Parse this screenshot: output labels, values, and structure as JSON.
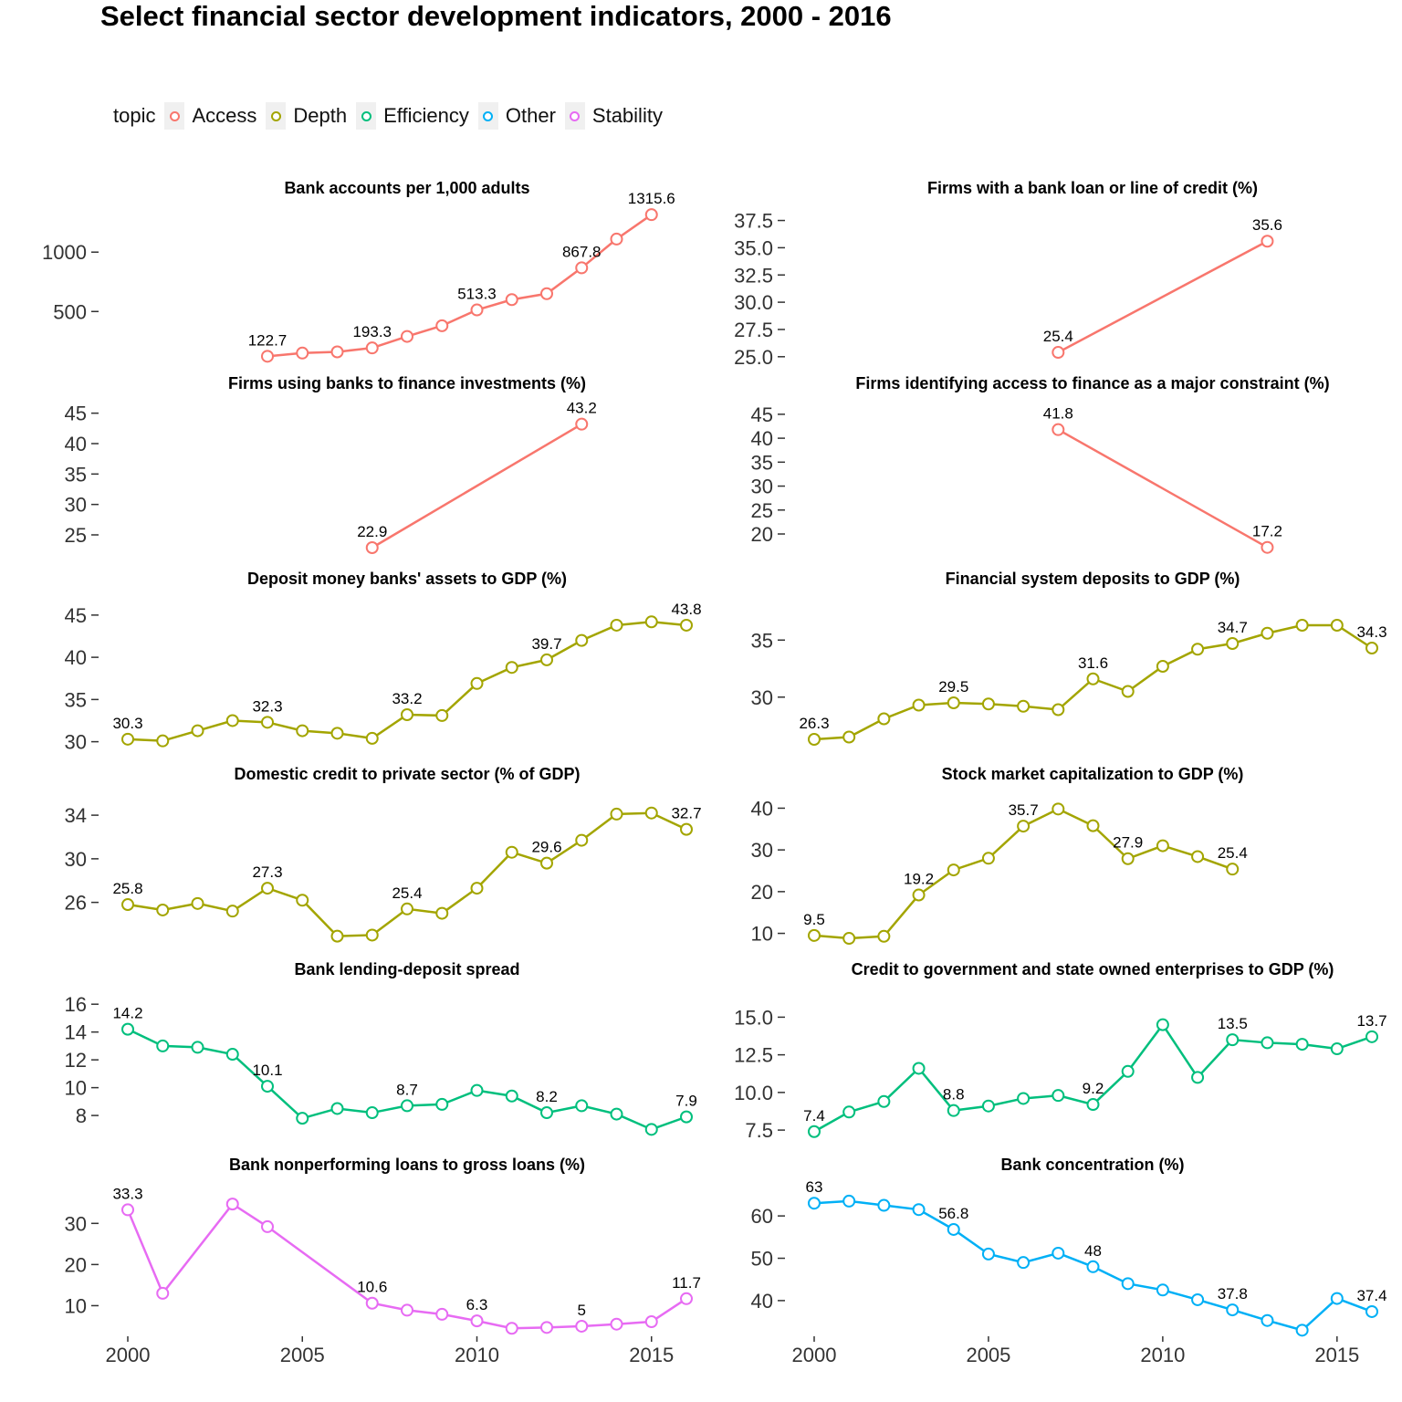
{
  "title": "Select financial sector development indicators, 2000 - 2016",
  "legend": {
    "title": "topic",
    "items": [
      {
        "label": "Access",
        "color": "#F8766D"
      },
      {
        "label": "Depth",
        "color": "#A3A500"
      },
      {
        "label": "Efficiency",
        "color": "#00BF7D"
      },
      {
        "label": "Other",
        "color": "#00B0F6"
      },
      {
        "label": "Stability",
        "color": "#E76BF3"
      }
    ]
  },
  "chart_data": [
    {
      "type": "line",
      "title": "Bank accounts per 1,000 adults",
      "topic": "Access",
      "x": [
        2004,
        2005,
        2006,
        2007,
        2008,
        2009,
        2010,
        2011,
        2012,
        2013,
        2014,
        2015
      ],
      "values": [
        122.7,
        150,
        160,
        193.3,
        290,
        380,
        513.3,
        600,
        650,
        867.8,
        1110,
        1315.6
      ],
      "labels": {
        "2004": "122.7",
        "2007": "193.3",
        "2010": "513.3",
        "2013": "867.8",
        "2015": "1315.6"
      },
      "yticks": [
        500,
        1000
      ],
      "ylim": [
        110,
        1340
      ]
    },
    {
      "type": "line",
      "title": "Firms with a bank loan or line of credit (%)",
      "topic": "Access",
      "x": [
        2007,
        2013
      ],
      "values": [
        25.4,
        35.6
      ],
      "labels": {
        "2007": "25.4",
        "2013": "35.6"
      },
      "yticks": [
        25.0,
        27.5,
        30.0,
        32.5,
        35.0,
        37.5
      ],
      "ytick_labels": [
        "25.0",
        "27.5",
        "30.0",
        "32.5",
        "35.0",
        "37.5"
      ],
      "ylim": [
        24.9,
        38.3
      ]
    },
    {
      "type": "line",
      "title": "Firms using banks to finance investments (%)",
      "topic": "Access",
      "x": [
        2007,
        2013
      ],
      "values": [
        22.9,
        43.2
      ],
      "labels": {
        "2007": "22.9",
        "2013": "43.2"
      },
      "yticks": [
        25,
        30,
        35,
        40,
        45
      ],
      "ylim": [
        22.0,
        46.0
      ]
    },
    {
      "type": "line",
      "title": "Firms identifying access to finance as a major constraint (%)",
      "topic": "Access",
      "x": [
        2007,
        2013
      ],
      "values": [
        41.8,
        17.2
      ],
      "labels": {
        "2007": "41.8",
        "2013": "17.2"
      },
      "yticks": [
        20,
        25,
        30,
        35,
        40,
        45
      ],
      "ylim": [
        16.0,
        46.5
      ]
    },
    {
      "type": "line",
      "title": "Deposit money banks' assets to GDP (%)",
      "topic": "Depth",
      "x": [
        2000,
        2001,
        2002,
        2003,
        2004,
        2005,
        2006,
        2007,
        2008,
        2009,
        2010,
        2011,
        2012,
        2013,
        2014,
        2015,
        2016
      ],
      "values": [
        30.3,
        30.1,
        31.3,
        32.5,
        32.3,
        31.3,
        31.0,
        30.4,
        33.2,
        33.1,
        36.9,
        38.8,
        39.7,
        42.0,
        43.8,
        44.2,
        43.8
      ],
      "labels": {
        "2000": "30.3",
        "2004": "32.3",
        "2008": "33.2",
        "2012": "39.7",
        "2016": "43.8"
      },
      "yticks": [
        30,
        35,
        40,
        45
      ],
      "ylim": [
        29.2,
        46.5
      ]
    },
    {
      "type": "line",
      "title": "Financial system deposits to GDP (%)",
      "topic": "Depth",
      "x": [
        2000,
        2001,
        2002,
        2003,
        2004,
        2005,
        2006,
        2007,
        2008,
        2009,
        2010,
        2011,
        2012,
        2013,
        2014,
        2015,
        2016
      ],
      "values": [
        26.3,
        26.5,
        28.1,
        29.3,
        29.5,
        29.4,
        29.2,
        28.9,
        31.6,
        30.5,
        32.7,
        34.2,
        34.7,
        35.6,
        36.3,
        36.3,
        34.3
      ],
      "labels": {
        "2000": "26.3",
        "2004": "29.5",
        "2008": "31.6",
        "2012": "34.7",
        "2016": "34.3"
      },
      "yticks": [
        30,
        35
      ],
      "ylim": [
        25.5,
        38.3
      ]
    },
    {
      "type": "line",
      "title": "Domestic credit to private sector (% of GDP)",
      "topic": "Depth",
      "x": [
        2000,
        2001,
        2002,
        2003,
        2004,
        2005,
        2006,
        2007,
        2008,
        2009,
        2010,
        2011,
        2012,
        2013,
        2014,
        2015,
        2016
      ],
      "values": [
        25.8,
        25.3,
        25.9,
        25.2,
        27.3,
        26.2,
        22.9,
        23.0,
        25.4,
        25.0,
        27.3,
        30.6,
        29.6,
        31.7,
        34.1,
        34.2,
        32.7
      ],
      "labels": {
        "2000": "25.8",
        "2004": "27.3",
        "2008": "25.4",
        "2012": "29.6",
        "2016": "32.7"
      },
      "yticks": [
        26,
        30,
        34
      ],
      "ylim": [
        22.2,
        35.6
      ]
    },
    {
      "type": "line",
      "title": "Stock market capitalization to GDP (%)",
      "topic": "Depth",
      "x": [
        2000,
        2001,
        2002,
        2003,
        2004,
        2005,
        2006,
        2007,
        2008,
        2009,
        2010,
        2011,
        2012
      ],
      "values": [
        9.5,
        8.8,
        9.3,
        19.2,
        25.2,
        28.0,
        35.7,
        39.8,
        35.8,
        27.9,
        31.0,
        28.4,
        25.4
      ],
      "labels": {
        "2000": "9.5",
        "2003": "19.2",
        "2006": "35.7",
        "2009": "27.9",
        "2012": "25.4"
      },
      "yticks": [
        10,
        20,
        30,
        40
      ],
      "ylim": [
        7.5,
        42.5
      ]
    },
    {
      "type": "line",
      "title": "Bank lending-deposit spread",
      "topic": "Efficiency",
      "x": [
        2000,
        2001,
        2002,
        2003,
        2004,
        2005,
        2006,
        2007,
        2008,
        2009,
        2010,
        2011,
        2012,
        2013,
        2014,
        2015,
        2016
      ],
      "values": [
        14.2,
        13.0,
        12.9,
        12.4,
        10.1,
        7.8,
        8.5,
        8.2,
        8.7,
        8.8,
        9.8,
        9.4,
        8.2,
        8.7,
        8.1,
        7.0,
        7.9
      ],
      "labels": {
        "2000": "14.2",
        "2004": "10.1",
        "2008": "8.7",
        "2012": "8.2",
        "2016": "7.9"
      },
      "yticks": [
        8,
        10,
        12,
        14,
        16
      ],
      "ylim": [
        6.3,
        16.8
      ]
    },
    {
      "type": "line",
      "title": "Credit to government and state owned enterprises to GDP (%)",
      "topic": "Efficiency",
      "x": [
        2000,
        2001,
        2002,
        2003,
        2004,
        2005,
        2006,
        2007,
        2008,
        2009,
        2010,
        2011,
        2012,
        2013,
        2014,
        2015,
        2016
      ],
      "values": [
        7.4,
        8.7,
        9.4,
        11.6,
        8.8,
        9.1,
        9.6,
        9.8,
        9.2,
        11.4,
        14.5,
        11.0,
        13.5,
        13.3,
        13.2,
        12.9,
        13.7
      ],
      "labels": {
        "2000": "7.4",
        "2004": "8.8",
        "2008": "9.2",
        "2012": "13.5",
        "2016": "13.7"
      },
      "yticks": [
        7.5,
        10.0,
        12.5,
        15.0
      ],
      "ytick_labels": [
        "7.5",
        "10.0",
        "12.5",
        "15.0"
      ],
      "ylim": [
        6.9,
        16.6
      ]
    },
    {
      "type": "line",
      "title": "Bank nonperforming loans to gross loans (%)",
      "topic": "Stability",
      "x": [
        2000,
        2001,
        2003,
        2004,
        2007,
        2008,
        2009,
        2010,
        2011,
        2012,
        2013,
        2014,
        2015,
        2016
      ],
      "values": [
        33.3,
        13.0,
        34.7,
        29.2,
        10.6,
        8.9,
        7.9,
        6.3,
        4.5,
        4.7,
        5.0,
        5.5,
        6.1,
        11.7
      ],
      "labels": {
        "2000": "33.3",
        "2007": "10.6",
        "2010": "6.3",
        "2013": "5",
        "2016": "11.7"
      },
      "yticks": [
        10,
        20,
        30
      ],
      "ylim": [
        3.0,
        38.5
      ]
    },
    {
      "type": "line",
      "title": "Bank concentration (%)",
      "topic": "Other",
      "x": [
        2000,
        2001,
        2002,
        2003,
        2004,
        2005,
        2006,
        2007,
        2008,
        2009,
        2010,
        2011,
        2012,
        2013,
        2014,
        2015,
        2016
      ],
      "values": [
        63,
        63.5,
        62.5,
        61.5,
        56.8,
        51.0,
        49.0,
        51.2,
        48,
        44.0,
        42.5,
        40.2,
        37.8,
        35.3,
        33.0,
        40.5,
        37.4
      ],
      "labels": {
        "2000": "63",
        "2004": "56.8",
        "2008": "48",
        "2012": "37.8",
        "2016": "37.4"
      },
      "yticks": [
        40,
        50,
        60
      ],
      "ylim": [
        32.0,
        66.5
      ]
    }
  ],
  "x_axis": {
    "ticks": [
      2000,
      2005,
      2010,
      2015
    ],
    "tick_labels": [
      "2000",
      "2005",
      "2010",
      "2015"
    ],
    "xlim": [
      1999.8,
      2016.2
    ]
  }
}
